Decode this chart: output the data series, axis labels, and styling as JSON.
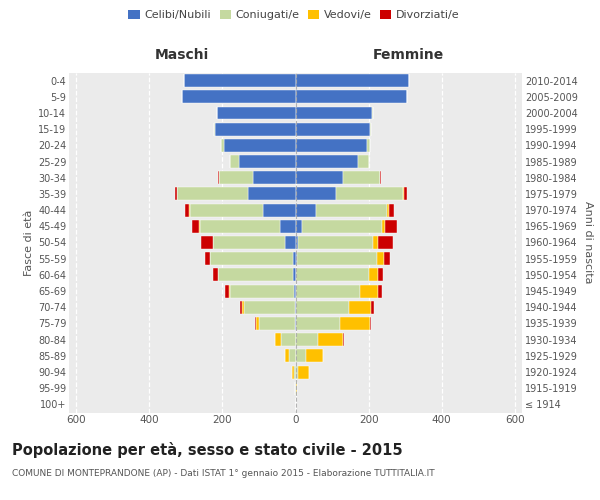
{
  "age_groups": [
    "100+",
    "95-99",
    "90-94",
    "85-89",
    "80-84",
    "75-79",
    "70-74",
    "65-69",
    "60-64",
    "55-59",
    "50-54",
    "45-49",
    "40-44",
    "35-39",
    "30-34",
    "25-29",
    "20-24",
    "15-19",
    "10-14",
    "5-9",
    "0-4"
  ],
  "birth_years": [
    "≤ 1914",
    "1915-1919",
    "1920-1924",
    "1925-1929",
    "1930-1934",
    "1935-1939",
    "1940-1944",
    "1945-1949",
    "1950-1954",
    "1955-1959",
    "1960-1964",
    "1965-1969",
    "1970-1974",
    "1975-1979",
    "1980-1984",
    "1985-1989",
    "1990-1994",
    "1995-1999",
    "2000-2004",
    "2005-2009",
    "2010-2014"
  ],
  "colors": {
    "celibi": "#4472c4",
    "coniugati": "#c5d9a0",
    "vedovi": "#ffc000",
    "divorziati": "#cc0000"
  },
  "maschi": {
    "celibi": [
      0,
      0,
      0,
      0,
      0,
      1,
      2,
      3,
      6,
      8,
      30,
      42,
      90,
      130,
      115,
      155,
      195,
      220,
      215,
      310,
      305
    ],
    "coniugati": [
      0,
      1,
      4,
      18,
      40,
      100,
      140,
      175,
      205,
      225,
      195,
      220,
      200,
      195,
      95,
      25,
      8,
      3,
      0,
      0,
      0
    ],
    "vedovi": [
      0,
      0,
      5,
      10,
      15,
      8,
      5,
      3,
      2,
      2,
      1,
      1,
      1,
      0,
      0,
      0,
      0,
      0,
      0,
      0,
      0
    ],
    "divorziati": [
      0,
      0,
      0,
      0,
      0,
      3,
      5,
      12,
      12,
      12,
      32,
      20,
      12,
      5,
      2,
      0,
      0,
      0,
      0,
      0,
      0
    ]
  },
  "femmine": {
    "celibi": [
      0,
      0,
      0,
      0,
      0,
      1,
      1,
      2,
      2,
      4,
      8,
      18,
      55,
      110,
      130,
      170,
      195,
      205,
      210,
      305,
      310
    ],
    "coniugati": [
      0,
      1,
      8,
      28,
      62,
      120,
      145,
      175,
      200,
      220,
      205,
      220,
      195,
      185,
      100,
      30,
      10,
      3,
      1,
      0,
      0
    ],
    "vedovi": [
      1,
      2,
      28,
      48,
      68,
      82,
      62,
      50,
      25,
      18,
      12,
      8,
      5,
      2,
      1,
      1,
      0,
      0,
      0,
      0,
      0
    ],
    "divorziati": [
      0,
      0,
      0,
      0,
      2,
      5,
      8,
      10,
      12,
      18,
      42,
      32,
      15,
      8,
      2,
      1,
      0,
      0,
      0,
      0,
      0
    ]
  },
  "title": "Popolazione per età, sesso e stato civile - 2015",
  "subtitle": "COMUNE DI MONTEPRANDONE (AP) - Dati ISTAT 1° gennaio 2015 - Elaborazione TUTTITALIA.IT",
  "label_maschi": "Maschi",
  "label_femmine": "Femmine",
  "ylabel_left": "Fasce di età",
  "ylabel_right": "Anni di nascita",
  "xlim": 620,
  "legend_labels": [
    "Celibi/Nubili",
    "Coniugati/e",
    "Vedovi/e",
    "Divorziati/e"
  ],
  "bg_color": "#ffffff",
  "plot_bg": "#ebebeb"
}
